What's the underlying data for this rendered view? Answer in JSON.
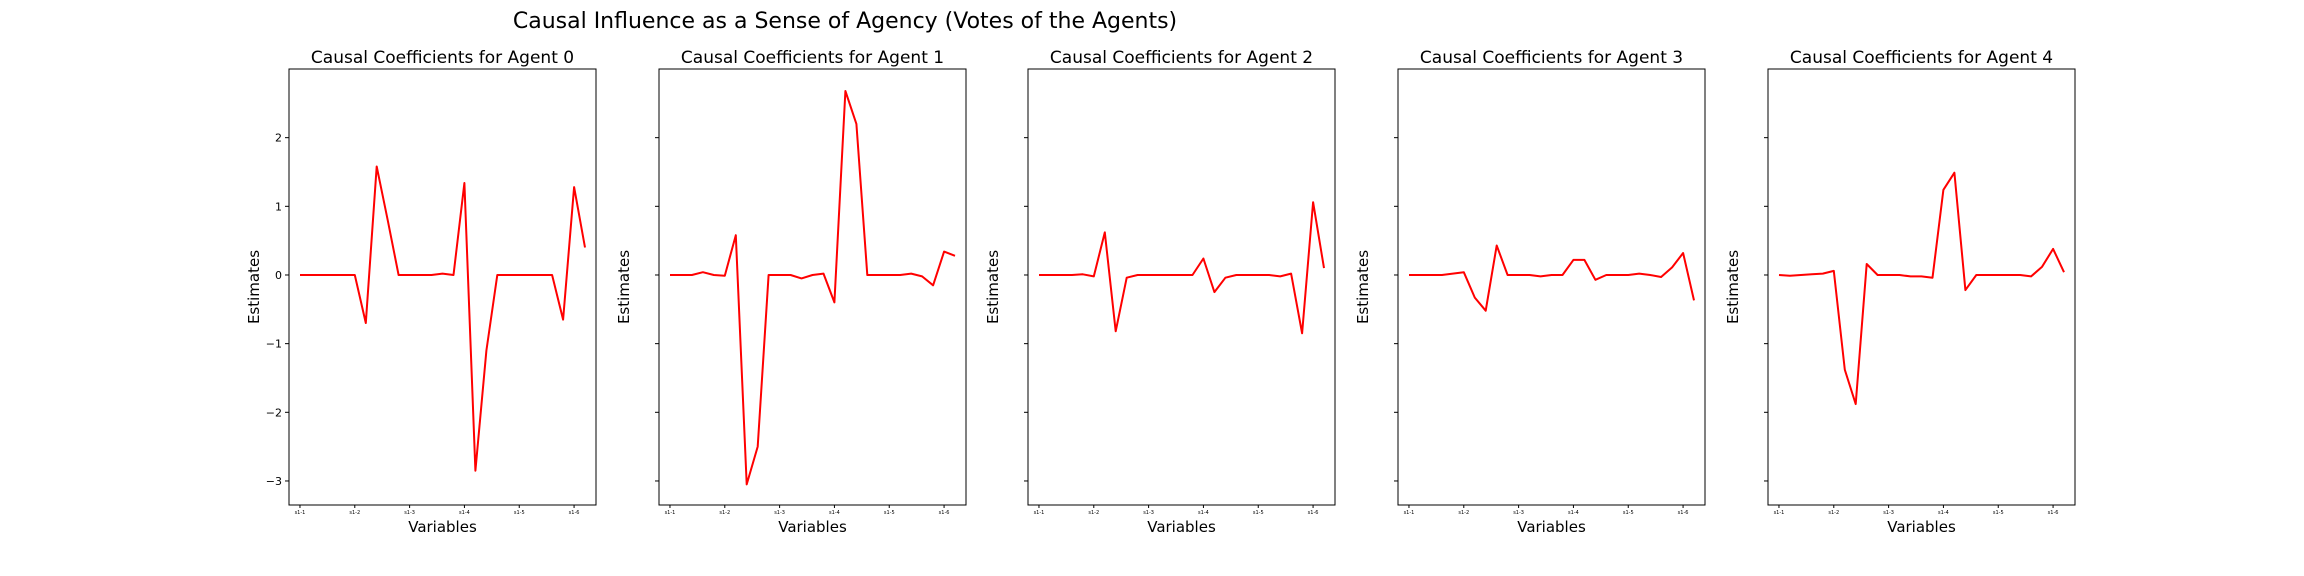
{
  "figure": {
    "title": "Causal Influence as a Sense of Agency (Votes of the Agents)"
  },
  "chart_data": [
    {
      "type": "line",
      "title": "Causal Coefficients for Agent 0",
      "xlabel": "Variables",
      "ylabel": "Estimates",
      "ylim": [
        -3.35,
        3.0
      ],
      "yticks": [
        2,
        1,
        0,
        -1,
        -2,
        -3
      ],
      "ytick_labels": [
        "2",
        "1",
        "0",
        "−1",
        "−2",
        "−3"
      ],
      "xtick_labels": [
        "s1-1",
        "s1-2",
        "s1-3",
        "s1-4",
        "s1-5",
        "s1-6"
      ],
      "xtick_positions": [
        0,
        5,
        10,
        15,
        20,
        25
      ],
      "series": [
        {
          "color": "#ff0000",
          "values": [
            0,
            0,
            0,
            0,
            0,
            0,
            -0.7,
            1.58,
            0.8,
            0,
            0,
            0,
            0,
            0.02,
            0,
            1.34,
            -2.85,
            -1.1,
            0,
            0,
            0,
            0,
            0,
            0,
            -0.65,
            1.28,
            0.4
          ]
        }
      ]
    },
    {
      "type": "line",
      "title": "Causal Coefficients for Agent 1",
      "xlabel": "Variables",
      "ylabel": "Estimates",
      "ylim": [
        -3.35,
        3.0
      ],
      "yticks": [
        2,
        1,
        0,
        -1,
        -2,
        -3
      ],
      "ytick_labels": [
        "",
        "",
        "",
        "",
        "",
        ""
      ],
      "xtick_labels": [
        "s1-1",
        "s1-2",
        "s1-3",
        "s1-4",
        "s1-5",
        "s1-6"
      ],
      "xtick_positions": [
        0,
        5,
        10,
        15,
        20,
        25
      ],
      "series": [
        {
          "color": "#ff0000",
          "values": [
            0,
            0,
            0,
            0.04,
            0,
            -0.01,
            0.58,
            -3.05,
            -2.5,
            0,
            0,
            0,
            -0.05,
            0,
            0.02,
            -0.4,
            2.68,
            2.2,
            0,
            0,
            0,
            0,
            0.02,
            -0.02,
            -0.15,
            0.34,
            0.28
          ]
        }
      ]
    },
    {
      "type": "line",
      "title": "Causal Coefficients for Agent 2",
      "xlabel": "Variables",
      "ylabel": "Estimates",
      "ylim": [
        -3.35,
        3.0
      ],
      "yticks": [
        2,
        1,
        0,
        -1,
        -2,
        -3
      ],
      "ytick_labels": [
        "",
        "",
        "",
        "",
        "",
        ""
      ],
      "xtick_labels": [
        "s1-1",
        "s1-2",
        "s1-3",
        "s1-4",
        "s1-5",
        "s1-6"
      ],
      "xtick_positions": [
        0,
        5,
        10,
        15,
        20,
        25
      ],
      "series": [
        {
          "color": "#ff0000",
          "values": [
            0,
            0,
            0,
            0,
            0.01,
            -0.02,
            0.62,
            -0.82,
            -0.04,
            0,
            0,
            0,
            0,
            0,
            0,
            0.24,
            -0.25,
            -0.04,
            0,
            0,
            0,
            0,
            -0.02,
            0.02,
            -0.85,
            1.06,
            0.1
          ]
        }
      ]
    },
    {
      "type": "line",
      "title": "Causal Coefficients for Agent 3",
      "xlabel": "Variables",
      "ylabel": "Estimates",
      "ylim": [
        -3.35,
        3.0
      ],
      "yticks": [
        2,
        1,
        0,
        -1,
        -2,
        -3
      ],
      "ytick_labels": [
        "",
        "",
        "",
        "",
        "",
        ""
      ],
      "xtick_labels": [
        "s1-1",
        "s1-2",
        "s1-3",
        "s1-4",
        "s1-5",
        "s1-6"
      ],
      "xtick_positions": [
        0,
        5,
        10,
        15,
        20,
        25
      ],
      "series": [
        {
          "color": "#ff0000",
          "values": [
            0,
            0,
            0,
            0,
            0.02,
            0.04,
            -0.33,
            -0.52,
            0.43,
            0,
            0,
            0,
            -0.02,
            0,
            0,
            0.22,
            0.22,
            -0.07,
            0,
            0,
            0,
            0.02,
            0,
            -0.03,
            0.11,
            0.32,
            -0.37
          ]
        }
      ]
    },
    {
      "type": "line",
      "title": "Causal Coefficients for Agent 4",
      "xlabel": "Variables",
      "ylabel": "Estimates",
      "ylim": [
        -3.35,
        3.0
      ],
      "yticks": [
        2,
        1,
        0,
        -1,
        -2,
        -3
      ],
      "ytick_labels": [
        "",
        "",
        "",
        "",
        "",
        ""
      ],
      "xtick_labels": [
        "s1-1",
        "s1-2",
        "s1-3",
        "s1-4",
        "s1-5",
        "s1-6"
      ],
      "xtick_positions": [
        0,
        5,
        10,
        15,
        20,
        25
      ],
      "series": [
        {
          "color": "#ff0000",
          "values": [
            0,
            -0.01,
            0,
            0.01,
            0.02,
            0.06,
            -1.38,
            -1.88,
            0.16,
            0,
            0,
            0,
            -0.02,
            -0.02,
            -0.04,
            1.24,
            1.49,
            -0.22,
            0,
            0,
            0,
            0,
            0,
            -0.02,
            0.12,
            0.38,
            0.04
          ]
        }
      ]
    }
  ]
}
